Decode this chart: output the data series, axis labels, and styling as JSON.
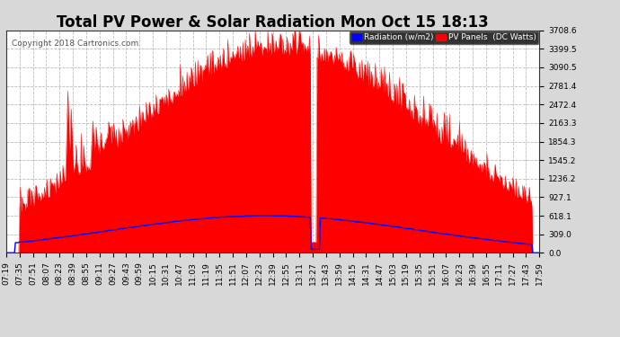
{
  "title": "Total PV Power & Solar Radiation Mon Oct 15 18:13",
  "copyright": "Copyright 2018 Cartronics.com",
  "legend_rad": "Radiation (w/m2)",
  "legend_pv": "PV Panels  (DC Watts)",
  "yticks": [
    0.0,
    309.0,
    618.1,
    927.1,
    1236.2,
    1545.2,
    1854.3,
    2163.3,
    2472.4,
    2781.4,
    3090.5,
    3399.5,
    3708.6
  ],
  "ymax": 3708.6,
  "background_color": "#d8d8d8",
  "plot_bg_color": "#ffffff",
  "grid_color": "#aaaaaa",
  "title_fontsize": 12,
  "tick_fontsize": 6.5,
  "xtick_labels": [
    "07:19",
    "07:35",
    "07:51",
    "08:07",
    "08:23",
    "08:39",
    "08:55",
    "09:11",
    "09:27",
    "09:43",
    "09:59",
    "10:15",
    "10:31",
    "10:47",
    "11:03",
    "11:19",
    "11:35",
    "11:51",
    "12:07",
    "12:23",
    "12:39",
    "12:55",
    "13:11",
    "13:27",
    "13:43",
    "13:59",
    "14:15",
    "14:31",
    "14:47",
    "15:03",
    "15:19",
    "15:35",
    "15:51",
    "16:07",
    "16:23",
    "16:39",
    "16:55",
    "17:11",
    "17:27",
    "17:43",
    "17:59"
  ]
}
